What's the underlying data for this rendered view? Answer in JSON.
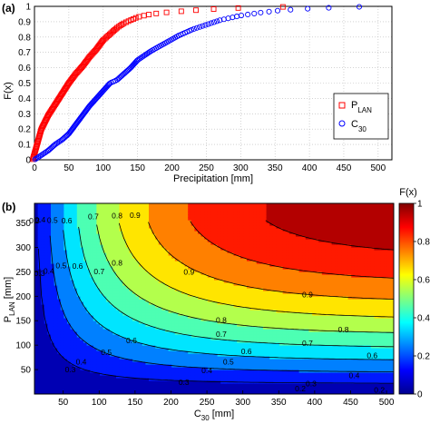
{
  "chart_data": [
    {
      "panel_label": "(a)",
      "type": "scatter",
      "xlabel": "Precipitation [mm]",
      "ylabel": "F(x)",
      "xlim": [
        0,
        520
      ],
      "ylim": [
        0,
        1
      ],
      "xticks": [
        "0",
        "50",
        "100",
        "150",
        "200",
        "250",
        "300",
        "350",
        "400",
        "450",
        "500"
      ],
      "yticks": [
        "0",
        "0.1",
        "0.2",
        "0.3",
        "0.4",
        "0.5",
        "0.6",
        "0.7",
        "0.8",
        "0.9",
        "1"
      ],
      "grid": true,
      "legend_position": "right",
      "series": [
        {
          "name_main": "P",
          "name_sub": "LAN",
          "marker": "square",
          "color": "#ff0000",
          "curve": [
            [
              0,
              0.04
            ],
            [
              5,
              0.12
            ],
            [
              10,
              0.2
            ],
            [
              20,
              0.29
            ],
            [
              30,
              0.36
            ],
            [
              40,
              0.43
            ],
            [
              50,
              0.5
            ],
            [
              60,
              0.56
            ],
            [
              70,
              0.61
            ],
            [
              80,
              0.67
            ],
            [
              90,
              0.72
            ],
            [
              100,
              0.78
            ],
            [
              110,
              0.82
            ],
            [
              120,
              0.86
            ],
            [
              130,
              0.89
            ],
            [
              140,
              0.91
            ],
            [
              150,
              0.93
            ],
            [
              170,
              0.95
            ],
            [
              190,
              0.96
            ],
            [
              220,
              0.97
            ],
            [
              250,
              0.98
            ],
            [
              300,
              0.99
            ],
            [
              350,
              0.995
            ],
            [
              390,
              1.0
            ]
          ],
          "n": 140
        },
        {
          "name_main": "C",
          "name_sub": "30",
          "marker": "circle",
          "color": "#0000ff",
          "curve": [
            [
              0,
              0.0
            ],
            [
              10,
              0.03
            ],
            [
              20,
              0.06
            ],
            [
              30,
              0.1
            ],
            [
              40,
              0.13
            ],
            [
              50,
              0.17
            ],
            [
              60,
              0.23
            ],
            [
              70,
              0.29
            ],
            [
              80,
              0.35
            ],
            [
              90,
              0.4
            ],
            [
              100,
              0.45
            ],
            [
              110,
              0.5
            ],
            [
              120,
              0.52
            ],
            [
              130,
              0.56
            ],
            [
              140,
              0.6
            ],
            [
              150,
              0.65
            ],
            [
              170,
              0.71
            ],
            [
              190,
              0.76
            ],
            [
              210,
              0.81
            ],
            [
              230,
              0.85
            ],
            [
              250,
              0.88
            ],
            [
              270,
              0.91
            ],
            [
              300,
              0.94
            ],
            [
              330,
              0.96
            ],
            [
              360,
              0.975
            ],
            [
              400,
              0.985
            ],
            [
              450,
              0.995
            ],
            [
              510,
              1.0
            ]
          ],
          "n": 160
        }
      ]
    },
    {
      "panel_label": "(b)",
      "type": "heatmap",
      "subtype": "filled-contour",
      "xlabel_main": "C",
      "xlabel_sub": "30",
      "xlabel_unit": " [mm]",
      "ylabel_main": "P",
      "ylabel_sub": "LAN",
      "ylabel_unit": " [mm]",
      "xlim": [
        10,
        510
      ],
      "ylim": [
        0,
        390
      ],
      "xticks": [
        "50",
        "100",
        "150",
        "200",
        "250",
        "300",
        "350",
        "400",
        "450",
        "500"
      ],
      "yticks": [
        "50",
        "100",
        "150",
        "200",
        "250",
        "300",
        "350"
      ],
      "levels": [
        0.1,
        0.2,
        0.3,
        0.4,
        0.5,
        0.6,
        0.7,
        0.8,
        0.9
      ],
      "colorbar": {
        "title": "F(x)",
        "ticks": [
          "0",
          "0.2",
          "0.4",
          "0.6",
          "0.8",
          "1"
        ]
      },
      "contour_labels": [
        {
          "text": "0.9",
          "x": 150,
          "y": 366
        },
        {
          "text": "0.8",
          "x": 125,
          "y": 365
        },
        {
          "text": "0.7",
          "x": 92,
          "y": 363
        },
        {
          "text": "0.6",
          "x": 55,
          "y": 355
        },
        {
          "text": "0.5",
          "x": 35,
          "y": 356
        },
        {
          "text": "0.4",
          "x": 18,
          "y": 357
        },
        {
          "text": "0.3",
          "x": 10,
          "y": 355
        },
        {
          "text": "0.9",
          "x": 225,
          "y": 250
        },
        {
          "text": "0.9",
          "x": 390,
          "y": 203
        },
        {
          "text": "0.8",
          "x": 125,
          "y": 268
        },
        {
          "text": "0.7",
          "x": 100,
          "y": 251
        },
        {
          "text": "0.6",
          "x": 70,
          "y": 262
        },
        {
          "text": "0.5",
          "x": 47,
          "y": 263
        },
        {
          "text": "0.4",
          "x": 30,
          "y": 252
        },
        {
          "text": "0.3",
          "x": 17,
          "y": 247
        },
        {
          "text": "0.8",
          "x": 270,
          "y": 151
        },
        {
          "text": "0.8",
          "x": 440,
          "y": 132
        },
        {
          "text": "0.7",
          "x": 270,
          "y": 123
        },
        {
          "text": "0.7",
          "x": 390,
          "y": 104
        },
        {
          "text": "0.6",
          "x": 145,
          "y": 110
        },
        {
          "text": "0.6",
          "x": 305,
          "y": 87
        },
        {
          "text": "0.6",
          "x": 480,
          "y": 79
        },
        {
          "text": "0.5",
          "x": 110,
          "y": 85
        },
        {
          "text": "0.5",
          "x": 280,
          "y": 66
        },
        {
          "text": "0.4",
          "x": 75,
          "y": 66
        },
        {
          "text": "0.4",
          "x": 250,
          "y": 48
        },
        {
          "text": "0.4",
          "x": 455,
          "y": 38
        },
        {
          "text": "0.3",
          "x": 60,
          "y": 50
        },
        {
          "text": "0.3",
          "x": 218,
          "y": 24
        },
        {
          "text": "0.3",
          "x": 395,
          "y": 21
        },
        {
          "text": "0.2",
          "x": 380,
          "y": 11
        },
        {
          "text": "0.2",
          "x": 490,
          "y": 8
        }
      ]
    }
  ]
}
